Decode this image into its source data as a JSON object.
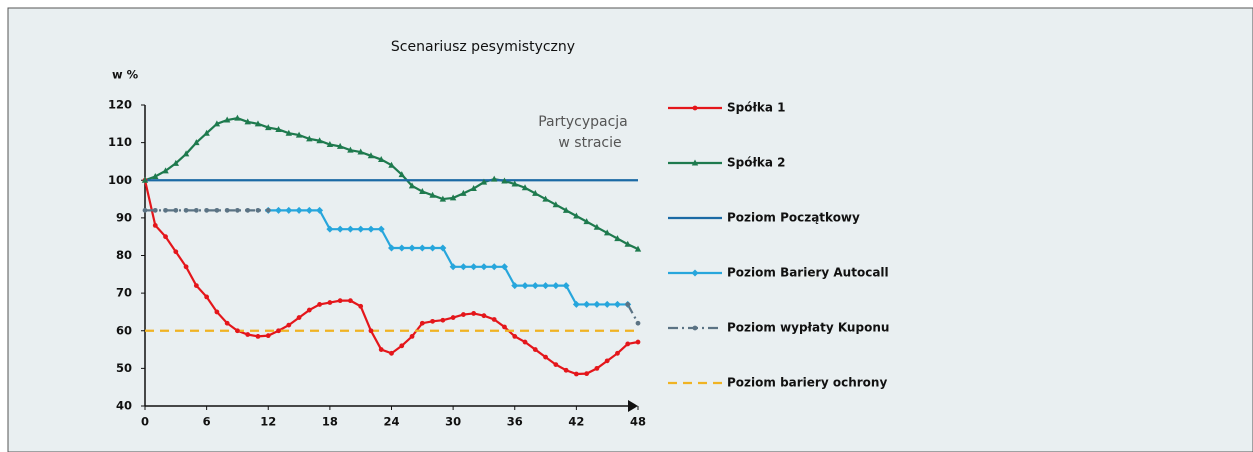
{
  "chart_data": {
    "type": "line",
    "title": "Scenariusz pesymistyczny",
    "y_label": "w %",
    "annotation": [
      "Partycypacja",
      "w stracie"
    ],
    "x": [
      0,
      1,
      2,
      3,
      4,
      5,
      6,
      7,
      8,
      9,
      10,
      11,
      12,
      13,
      14,
      15,
      16,
      17,
      18,
      19,
      20,
      21,
      22,
      23,
      24,
      25,
      26,
      27,
      28,
      29,
      30,
      31,
      32,
      33,
      34,
      35,
      36,
      37,
      38,
      39,
      40,
      41,
      42,
      43,
      44,
      45,
      46,
      47,
      48
    ],
    "xlim": [
      0,
      48
    ],
    "xticks": [
      0,
      6,
      12,
      18,
      24,
      30,
      36,
      42,
      48
    ],
    "ylim": [
      40,
      120
    ],
    "yticks": [
      40,
      50,
      60,
      70,
      80,
      90,
      100,
      110,
      120
    ],
    "series": [
      {
        "name": "Spółka 1",
        "color": "#e4161b",
        "marker": "circle",
        "style": "solid",
        "values": [
          100,
          88,
          85,
          81,
          77,
          72,
          69,
          65,
          62,
          60,
          59,
          58.5,
          58.7,
          60,
          61.5,
          63.5,
          65.5,
          67,
          67.5,
          68,
          68,
          66.5,
          60,
          55,
          54,
          56,
          58.5,
          62,
          62.5,
          62.8,
          63.5,
          64.3,
          64.6,
          64,
          63,
          61,
          58.5,
          57,
          55,
          53,
          51,
          49.5,
          48.5,
          48.6,
          50,
          52,
          54,
          56.5,
          57
        ]
      },
      {
        "name": "Spółka 2",
        "color": "#1e7a4e",
        "marker": "triangle",
        "style": "solid",
        "values": [
          100,
          101,
          102.5,
          104.5,
          107,
          110,
          112.5,
          115,
          116,
          116.5,
          115.5,
          115,
          114,
          113.5,
          112.5,
          112,
          111,
          110.5,
          109.5,
          109,
          108,
          107.5,
          106.5,
          105.5,
          104,
          101.5,
          98.5,
          97,
          96,
          95,
          95.3,
          96.5,
          97.8,
          99.5,
          100.3,
          99.8,
          99,
          98,
          96.5,
          95,
          93.5,
          92,
          90.5,
          89,
          87.5,
          86,
          84.5,
          83,
          81.7
        ]
      },
      {
        "name": "Poziom Początkowy",
        "color": "#1b6aa5",
        "marker": "none",
        "style": "solid",
        "values": [
          100,
          100,
          100,
          100,
          100,
          100,
          100,
          100,
          100,
          100,
          100,
          100,
          100,
          100,
          100,
          100,
          100,
          100,
          100,
          100,
          100,
          100,
          100,
          100,
          100,
          100,
          100,
          100,
          100,
          100,
          100,
          100,
          100,
          100,
          100,
          100,
          100,
          100,
          100,
          100,
          100,
          100,
          100,
          100,
          100,
          100,
          100,
          100,
          100
        ]
      },
      {
        "name": "Poziom Bariery Autocall",
        "color": "#27a6dc",
        "marker": "diamond",
        "style": "solid",
        "values": [
          null,
          null,
          null,
          null,
          null,
          null,
          null,
          null,
          null,
          null,
          null,
          null,
          92,
          92,
          92,
          92,
          92,
          92,
          87,
          87,
          87,
          87,
          87,
          87,
          82,
          82,
          82,
          82,
          82,
          82,
          77,
          77,
          77,
          77,
          77,
          77,
          72,
          72,
          72,
          72,
          72,
          72,
          67,
          67,
          67,
          67,
          67,
          67,
          null
        ]
      },
      {
        "name": "Poziom wypłaty Kuponu",
        "color": "#5b7384",
        "marker": "circle",
        "style": "dashdot",
        "values": [
          92,
          92,
          92,
          92,
          92,
          92,
          92,
          92,
          92,
          92,
          92,
          92,
          92,
          null,
          null,
          null,
          null,
          null,
          null,
          null,
          null,
          null,
          null,
          null,
          null,
          null,
          null,
          null,
          null,
          null,
          null,
          null,
          null,
          null,
          null,
          null,
          null,
          null,
          null,
          null,
          null,
          null,
          null,
          null,
          null,
          null,
          null,
          67,
          62
        ]
      },
      {
        "name": "Poziom bariery ochrony",
        "color": "#f0b323",
        "marker": "none",
        "style": "dashed",
        "values": [
          60,
          60,
          60,
          60,
          60,
          60,
          60,
          60,
          60,
          60,
          60,
          60,
          60,
          60,
          60,
          60,
          60,
          60,
          60,
          60,
          60,
          60,
          60,
          60,
          60,
          60,
          60,
          60,
          60,
          60,
          60,
          60,
          60,
          60,
          60,
          60,
          60,
          60,
          60,
          60,
          60,
          60,
          60,
          60,
          60,
          60,
          60,
          60,
          60
        ]
      }
    ]
  }
}
